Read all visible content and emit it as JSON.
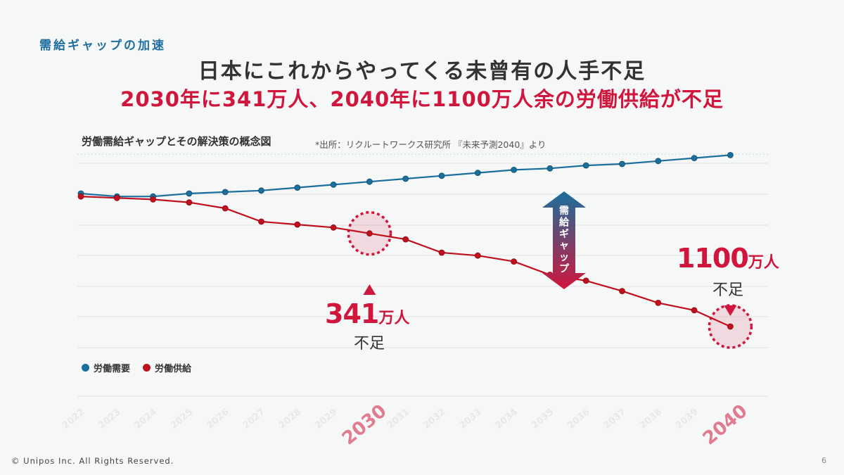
{
  "header": {
    "section_label": "需給ギャップの加速",
    "headline_line1": "日本にこれからやってくる未曾有の人手不足",
    "headline_line2": "2030年に341万人、2040年に1100万人余の労働供給が不足"
  },
  "chart_header": {
    "title": "労働需給ギャップとその解決策の概念図",
    "source": "*出所：リクルートワークス研究所 『未来予測2040』より"
  },
  "colors": {
    "demand": "#1a6f9c",
    "supply": "#c0101e",
    "accent": "#d0163c"
  },
  "chart_data": {
    "type": "line",
    "title": "労働需給ギャップとその解決策の概念図",
    "x": [
      "2022",
      "2023",
      "2024",
      "2025",
      "2026",
      "2027",
      "2028",
      "2029",
      "2030",
      "2031",
      "2032",
      "2033",
      "2034",
      "2035",
      "2036",
      "2037",
      "2038",
      "2039",
      "2040"
    ],
    "series": [
      {
        "name": "労働需要",
        "values": [
          100,
          98,
          98,
          100,
          101,
          102,
          104,
          106,
          108,
          110,
          112,
          114,
          116,
          117,
          119,
          120,
          122,
          124,
          126
        ]
      },
      {
        "name": "労働供給",
        "values": [
          98,
          97,
          96,
          94,
          90,
          81,
          79,
          77,
          73,
          69,
          60,
          58,
          54,
          45,
          41,
          34,
          26,
          21,
          10
        ]
      }
    ],
    "ylim": [
      -30,
      135
    ],
    "grid": true,
    "highlight_years": [
      "2030",
      "2040"
    ],
    "gap_label": "需給ギャップ",
    "annotations": [
      {
        "year": "2030",
        "number": "341",
        "unit": "万人",
        "text": "不足"
      },
      {
        "year": "2040",
        "number": "1100",
        "unit": "万人",
        "text": "不足"
      }
    ]
  },
  "legend": {
    "demand": "労働需要",
    "supply": "労働供給"
  },
  "footer": {
    "copyright": "© Unipos Inc. All Rights Reserved.",
    "page": "6"
  }
}
